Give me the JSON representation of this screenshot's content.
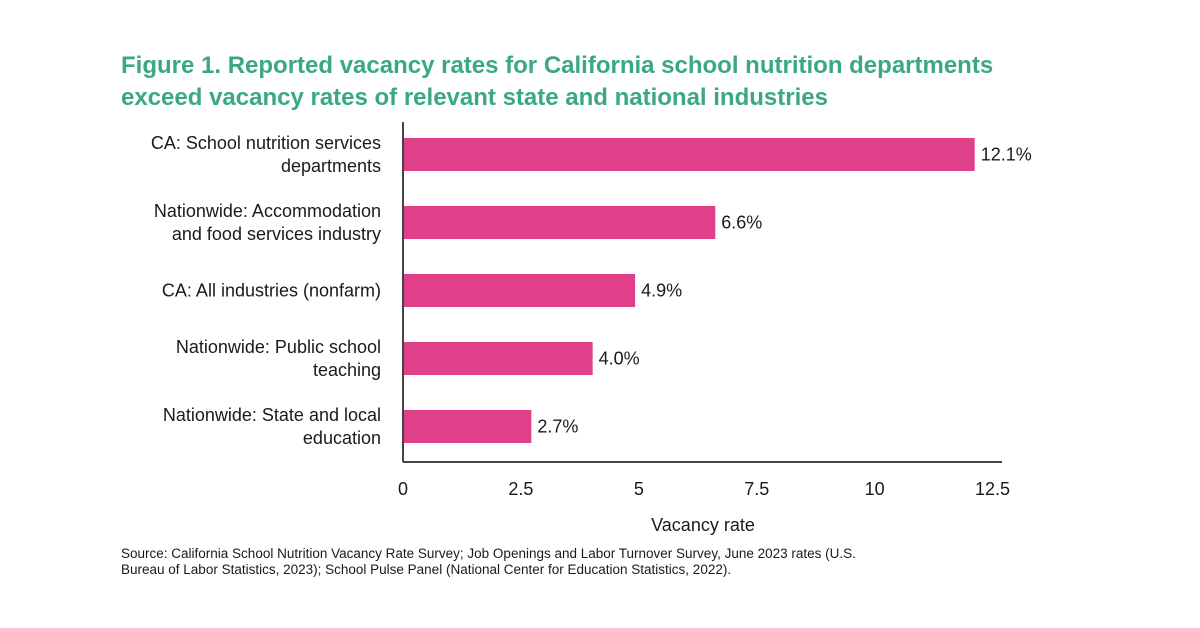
{
  "figure": {
    "title_lines": [
      "Figure 1. Reported vacancy rates for California school nutrition departments",
      "exceed vacancy rates of relevant state and national industries"
    ],
    "source_lines": [
      "Source: California School Nutrition Vacancy Rate Survey; Job Openings and Labor Turnover Survey, June 2023 rates (U.S.",
      "Bureau of Labor Statistics, 2023); School Pulse Panel (National Center for Education Statistics, 2022)."
    ]
  },
  "colors": {
    "title": "#3aa886",
    "bar": "#e0408a",
    "axis": "#444444"
  },
  "chart_data": {
    "type": "bar",
    "orientation": "horizontal",
    "categories": [
      [
        "CA: School nutrition services",
        "departments"
      ],
      [
        "Nationwide: Accommodation",
        "and food services industry"
      ],
      [
        "CA: All industries (nonfarm)"
      ],
      [
        "Nationwide: Public school",
        "teaching"
      ],
      [
        "Nationwide: State and local",
        "education"
      ]
    ],
    "values": [
      12.1,
      6.6,
      4.9,
      4.0,
      2.7
    ],
    "value_labels": [
      "12.1%",
      "6.6%",
      "4.9%",
      "4.0%",
      "2.7%"
    ],
    "xlabel": "Vacancy rate",
    "ylabel": "",
    "xlim": [
      0,
      12.7
    ],
    "xticks": [
      0,
      2.5,
      5,
      7.5,
      10,
      12.5
    ],
    "xtick_labels": [
      "0",
      "2.5",
      "5",
      "7.5",
      "10",
      "12.5"
    ],
    "grid": false,
    "legend": "none"
  }
}
